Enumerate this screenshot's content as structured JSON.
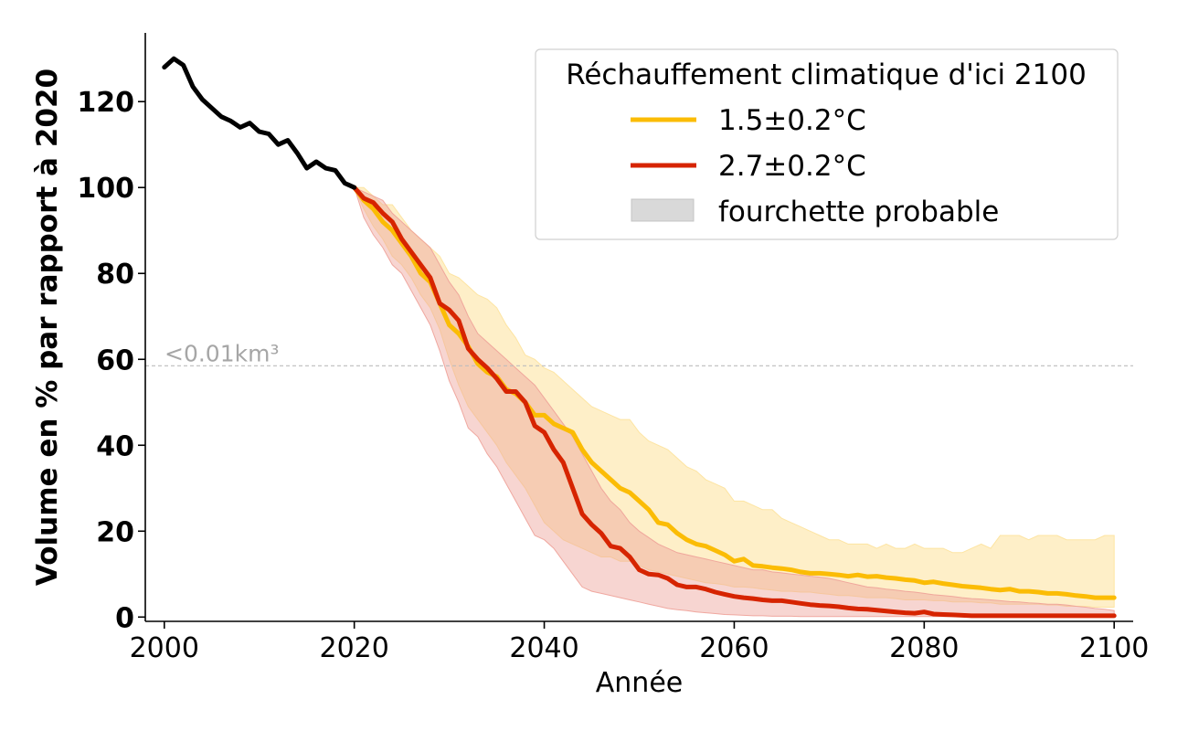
{
  "chart_data": {
    "type": "line",
    "title": "",
    "xlabel": "Année",
    "ylabel": "Volume en % par rapport à 2020",
    "xlim": [
      1998,
      2102
    ],
    "ylim": [
      -1,
      136
    ],
    "xticks": [
      2000,
      2020,
      2040,
      2060,
      2080,
      2100
    ],
    "yticks": [
      0,
      20,
      40,
      60,
      80,
      100,
      120
    ],
    "grid": false,
    "legend": {
      "title": "Réchauffement climatique d'ici 2100",
      "placement": "top-right",
      "entries": [
        "1.5±0.2°C",
        "2.7±0.2°C",
        "fourchette probable"
      ]
    },
    "reference_line": {
      "y": 58.5,
      "label": "<0.01km³",
      "color": "#bdbdbd"
    },
    "colors": {
      "historical": "#000000",
      "s15": "#fbbc05",
      "s27": "#d62400",
      "s15_band": "#fde29b",
      "s27_band": "#eea198",
      "legend_band": "#d9d9d9"
    },
    "historical": {
      "x": [
        2000,
        2001,
        2002,
        2003,
        2004,
        2005,
        2006,
        2007,
        2008,
        2009,
        2010,
        2011,
        2012,
        2013,
        2014,
        2015,
        2016,
        2017,
        2018,
        2019,
        2020
      ],
      "y": [
        128,
        130,
        128.5,
        123.5,
        120.5,
        118.5,
        116.5,
        115.5,
        114,
        115,
        113,
        112.5,
        110,
        111,
        108,
        104.5,
        106,
        104.5,
        104,
        101,
        100
      ]
    },
    "series": [
      {
        "name": "1.5±0.2°C",
        "x": [
          2020,
          2021,
          2022,
          2023,
          2024,
          2025,
          2026,
          2027,
          2028,
          2029,
          2030,
          2031,
          2032,
          2033,
          2034,
          2035,
          2036,
          2037,
          2038,
          2039,
          2040,
          2041,
          2042,
          2043,
          2044,
          2045,
          2046,
          2047,
          2048,
          2049,
          2050,
          2051,
          2052,
          2053,
          2054,
          2055,
          2056,
          2057,
          2058,
          2059,
          2060,
          2061,
          2062,
          2063,
          2064,
          2065,
          2066,
          2067,
          2068,
          2069,
          2070,
          2071,
          2072,
          2073,
          2074,
          2075,
          2076,
          2077,
          2078,
          2079,
          2080,
          2081,
          2082,
          2083,
          2084,
          2085,
          2086,
          2087,
          2088,
          2089,
          2090,
          2091,
          2092,
          2093,
          2094,
          2095,
          2096,
          2097,
          2098,
          2099,
          2100
        ],
        "y": [
          100,
          97,
          95,
          92,
          90,
          87,
          84,
          80,
          78,
          73,
          68,
          66,
          63,
          59,
          57,
          56,
          53,
          52,
          50,
          47,
          47,
          45,
          44,
          43,
          39,
          36,
          34,
          32,
          30,
          29,
          27,
          25,
          22,
          21.5,
          19.5,
          18,
          17,
          16.5,
          15.5,
          14.5,
          13,
          13.5,
          12,
          11.8,
          11.5,
          11.3,
          11,
          10.5,
          10.2,
          10.2,
          10,
          9.8,
          9.5,
          9.8,
          9.4,
          9.5,
          9.2,
          9,
          8.7,
          8.5,
          8,
          8.2,
          7.8,
          7.5,
          7.2,
          7,
          6.8,
          6.5,
          6.3,
          6.5,
          6,
          6,
          5.8,
          5.5,
          5.5,
          5.3,
          5,
          4.8,
          4.5,
          4.5,
          4.5
        ],
        "band_upper": [
          100,
          100,
          98,
          96,
          96,
          93,
          90,
          88,
          86,
          84,
          80,
          79,
          77,
          75,
          74,
          72,
          68,
          65,
          61,
          60,
          58,
          57,
          55,
          53,
          51,
          49,
          48,
          47,
          46,
          46,
          43,
          41,
          40,
          39,
          37,
          35,
          34,
          32,
          31,
          30,
          27,
          27,
          26,
          25,
          25,
          23,
          22,
          21,
          20,
          19,
          18,
          18,
          17,
          17,
          17,
          16,
          17,
          16,
          16,
          17,
          16,
          16,
          16,
          15,
          15,
          16,
          17,
          16,
          19,
          19,
          19,
          18,
          19,
          19,
          19,
          18,
          18,
          18,
          18,
          19,
          19
        ],
        "band_lower": [
          100,
          95,
          91,
          88,
          84,
          82,
          79,
          75,
          72,
          67,
          60,
          54,
          49,
          46,
          43,
          40,
          36,
          33,
          30,
          26,
          22,
          20,
          18,
          17,
          16,
          15,
          14,
          14,
          13,
          13,
          12,
          11,
          10.5,
          10,
          9.5,
          9,
          8.5,
          8,
          7.8,
          7.5,
          7,
          7,
          6.8,
          6.5,
          6.3,
          6,
          6,
          5.8,
          5.8,
          5.5,
          5.3,
          5,
          5,
          4.8,
          4.5,
          4.5,
          4.5,
          4.3,
          4,
          4,
          4,
          3.8,
          3.8,
          3.5,
          3.5,
          3.5,
          3.3,
          3.3,
          3,
          3,
          3,
          3,
          3,
          2.8,
          2.8,
          2.5,
          2.5,
          2.5,
          2.3,
          2.3,
          2.3
        ]
      },
      {
        "name": "2.7±0.2°C",
        "x": [
          2020,
          2021,
          2022,
          2023,
          2024,
          2025,
          2026,
          2027,
          2028,
          2029,
          2030,
          2031,
          2032,
          2033,
          2034,
          2035,
          2036,
          2037,
          2038,
          2039,
          2040,
          2041,
          2042,
          2043,
          2044,
          2045,
          2046,
          2047,
          2048,
          2049,
          2050,
          2051,
          2052,
          2053,
          2054,
          2055,
          2056,
          2057,
          2058,
          2059,
          2060,
          2061,
          2062,
          2063,
          2064,
          2065,
          2066,
          2067,
          2068,
          2069,
          2070,
          2071,
          2072,
          2073,
          2074,
          2075,
          2076,
          2077,
          2078,
          2079,
          2080,
          2081,
          2082,
          2083,
          2084,
          2085,
          2086,
          2087,
          2088,
          2089,
          2090,
          2091,
          2092,
          2093,
          2094,
          2095,
          2096,
          2097,
          2098,
          2099,
          2100
        ],
        "y": [
          100,
          97.5,
          96.5,
          94,
          92,
          88,
          85,
          82,
          79,
          73,
          71.5,
          69,
          62.5,
          60,
          58,
          55.5,
          52.5,
          52.5,
          50,
          44.5,
          43,
          39,
          36,
          30,
          24,
          21.5,
          19.5,
          16.5,
          16,
          14,
          11,
          10,
          9.8,
          9,
          7.5,
          7,
          7,
          6.5,
          5.8,
          5.3,
          4.8,
          4.5,
          4.3,
          4,
          3.8,
          3.8,
          3.5,
          3.2,
          2.9,
          2.7,
          2.6,
          2.4,
          2.1,
          1.9,
          1.8,
          1.6,
          1.4,
          1.2,
          1,
          0.9,
          1.2,
          0.7,
          0.6,
          0.5,
          0.4,
          0.3,
          0.3,
          0.3,
          0.3,
          0.3,
          0.3,
          0.3,
          0.3,
          0.3,
          0.3,
          0.3,
          0.3,
          0.3,
          0.3,
          0.3,
          0.3
        ],
        "band_upper": [
          100,
          99,
          98,
          97,
          94,
          92,
          90,
          88,
          86,
          82,
          78,
          75,
          70,
          66,
          64,
          62,
          60,
          58,
          56,
          54,
          51,
          48,
          45,
          42,
          38,
          34,
          30,
          27,
          25,
          22,
          20,
          18.5,
          17,
          16,
          15,
          14.5,
          14,
          13.5,
          13,
          12.5,
          12,
          11.5,
          11,
          11,
          10.5,
          10.3,
          10,
          9.8,
          9.5,
          9.3,
          9,
          8.5,
          8,
          7.5,
          7,
          6.8,
          6.5,
          6.3,
          6,
          5.8,
          5.5,
          5.2,
          5,
          4.8,
          4.5,
          4.3,
          4.2,
          4,
          3.8,
          3.6,
          3.5,
          3.3,
          3.2,
          3,
          3,
          2.8,
          2.5,
          2.3,
          2,
          1.8,
          1.5
        ],
        "band_lower": [
          100,
          93,
          89,
          86,
          82,
          80,
          76,
          72,
          68,
          62,
          55,
          50,
          44,
          42,
          38,
          35,
          31,
          27,
          23,
          19,
          18,
          16,
          13,
          10,
          7,
          6,
          5.5,
          5,
          4.5,
          4,
          3.5,
          3,
          2.5,
          2,
          1.7,
          1.5,
          1.2,
          1,
          0.8,
          0.6,
          0.5,
          0.4,
          0.3,
          0.3,
          0.2,
          0.2,
          0.2,
          0.1,
          0.1,
          0.1,
          0.1,
          0.1,
          0.1,
          0.1,
          0.1,
          0.1,
          0.1,
          0.1,
          0.1,
          0.1,
          0.1,
          0.1,
          0.1,
          0.1,
          0.1,
          0.1,
          0.1,
          0.1,
          0.1,
          0.1,
          0.1,
          0.1,
          0.1,
          0.1,
          0.1,
          0.1,
          0.1,
          0.1,
          0.1,
          0.1,
          0.1
        ]
      }
    ]
  }
}
